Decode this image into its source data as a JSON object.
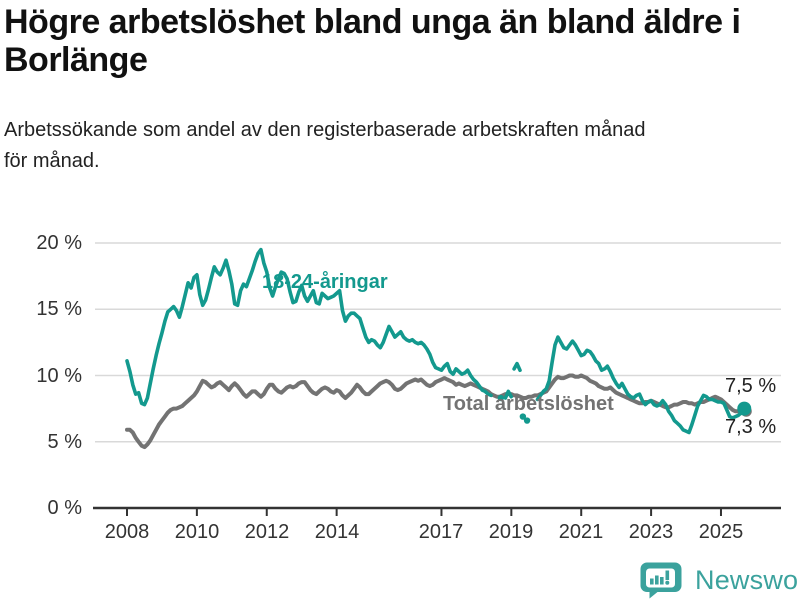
{
  "header": {
    "title": "Högre arbetslöshet bland unga än bland äldre i Borlänge",
    "subtitle": "Arbetssökande som andel av den registerbaserade arbetskraften månad för månad."
  },
  "colors": {
    "young_series": "#13998E",
    "total_series": "#737373",
    "gridline": "#d9d9d9",
    "axis": "#333333",
    "tick_label": "#333333",
    "title_text": "#111111",
    "logo_teal": "#3BA29D"
  },
  "footer": {
    "brand": "Newsworthy",
    "logo_icon": "newsworthy-speech-bubble-bar-chart-icon"
  },
  "chart_data": {
    "type": "line",
    "unit": "%",
    "grid": "horizontal",
    "legend_position": "inline-annotations",
    "ylim": [
      0,
      20
    ],
    "xlim": [
      2008,
      2025.75
    ],
    "yticks": [
      {
        "value": 20,
        "label": "20 %"
      },
      {
        "value": 15,
        "label": "15 %"
      },
      {
        "value": 10,
        "label": "10 %"
      },
      {
        "value": 5,
        "label": "5 %"
      },
      {
        "value": 0,
        "label": "0 %"
      }
    ],
    "xticks": [
      {
        "year": 2008,
        "label": "2008"
      },
      {
        "year": 2010,
        "label": "2010"
      },
      {
        "year": 2012,
        "label": "2012"
      },
      {
        "year": 2014,
        "label": "2014"
      },
      {
        "year": 2017,
        "label": "2017"
      },
      {
        "year": 2019,
        "label": "2019"
      },
      {
        "year": 2021,
        "label": "2021"
      },
      {
        "year": 2023,
        "label": "2023"
      },
      {
        "year": 2025,
        "label": "2025"
      }
    ],
    "series": [
      {
        "name": "Total arbetslöshet",
        "annotation_label": "Total arbetslöshet",
        "end_value_label": "7,3 %",
        "end_value": 7.3,
        "color": "#737373",
        "line_width": 4,
        "end_dot_radius": 5.5,
        "segments": [
          {
            "start": 2008.0,
            "step_months": 1,
            "values": [
              5.9,
              5.9,
              5.7,
              5.3,
              5.0,
              4.7,
              4.6,
              4.8,
              5.1,
              5.5,
              5.9,
              6.3,
              6.6,
              6.9,
              7.2,
              7.4,
              7.5,
              7.5,
              7.6,
              7.7,
              7.9,
              8.1,
              8.3,
              8.5,
              8.8,
              9.2,
              9.6,
              9.5,
              9.3,
              9.1,
              9.2,
              9.4,
              9.5,
              9.3,
              9.1,
              8.9,
              9.2,
              9.4,
              9.2,
              8.9,
              8.6,
              8.4,
              8.6,
              8.8,
              8.8,
              8.6,
              8.4,
              8.6,
              9.0,
              9.3,
              9.3,
              9.0,
              8.8,
              8.7,
              8.9,
              9.1,
              9.2,
              9.1,
              9.2,
              9.4,
              9.5,
              9.5,
              9.2,
              8.9,
              8.7,
              8.6,
              8.8,
              9.0,
              9.1,
              9.0,
              8.8,
              8.7,
              8.9,
              8.8,
              8.5,
              8.3,
              8.5,
              8.7,
              9.0,
              9.3,
              9.1,
              8.8,
              8.6,
              8.6,
              8.8,
              9.0,
              9.2,
              9.4,
              9.5,
              9.6,
              9.5,
              9.3,
              9.0,
              8.9,
              9.0,
              9.2,
              9.4,
              9.5,
              9.6,
              9.7,
              9.6,
              9.7,
              9.5,
              9.3,
              9.2,
              9.3,
              9.5,
              9.6,
              9.7,
              9.8,
              9.7,
              9.6,
              9.5,
              9.3,
              9.4,
              9.3,
              9.2,
              9.3,
              9.4,
              9.3,
              9.2,
              9.1,
              9.0,
              8.9,
              8.8,
              8.6,
              8.5,
              8.4,
              8.4,
              8.5,
              8.6,
              8.6,
              8.6,
              8.5,
              8.5,
              8.4,
              8.3,
              8.3,
              8.4,
              8.4,
              8.5,
              8.5,
              8.6,
              8.7,
              8.8,
              9.1,
              9.4,
              9.7,
              9.9,
              9.8,
              9.8,
              9.9,
              10.0,
              10.0,
              9.9,
              9.9,
              10.0,
              9.9,
              9.8,
              9.6,
              9.5,
              9.4,
              9.2,
              9.1,
              9.0,
              9.0,
              9.1,
              8.9,
              8.7,
              8.6,
              8.5,
              8.4,
              8.3,
              8.2,
              8.1,
              8.0,
              7.9,
              7.9,
              8.0,
              8.0,
              8.1,
              8.0,
              7.9,
              7.8,
              7.7,
              7.6,
              7.6,
              7.7,
              7.8,
              7.8,
              7.9,
              8.0,
              8.0,
              7.9,
              7.9,
              7.8,
              7.9,
              8.0,
              8.0,
              8.1,
              8.2,
              8.3,
              8.4,
              8.3,
              8.2,
              8.0,
              7.8,
              7.6,
              7.4,
              7.3,
              7.3,
              7.2,
              7.3
            ]
          }
        ],
        "isolated_dots": []
      },
      {
        "name": "18-24-åringar",
        "annotation_label": "18-24-åringar",
        "end_value_label": "7,5 %",
        "end_value": 7.5,
        "color": "#13998E",
        "line_width": 3.6,
        "end_dot_radius": 7,
        "segments": [
          {
            "start": 2008.0,
            "step_months": 1,
            "values": [
              11.1,
              10.3,
              9.3,
              8.6,
              8.7,
              7.9,
              7.8,
              8.3,
              9.4,
              10.5,
              11.5,
              12.4,
              13.2,
              14.1,
              14.8,
              15.0,
              15.2,
              14.9,
              14.4,
              15.2,
              16.1,
              17.0,
              16.6,
              17.4,
              17.6,
              16.1,
              15.3,
              15.7,
              16.5,
              17.4,
              18.2,
              17.8,
              17.6,
              18.1,
              18.7,
              17.9,
              16.9,
              15.4,
              15.3,
              16.4,
              16.9,
              16.7,
              17.3,
              17.9,
              18.6,
              19.2,
              19.5,
              18.5,
              17.8,
              16.6,
              16.0,
              16.7,
              17.3,
              17.8,
              17.7,
              17.3,
              16.3,
              15.5,
              15.6,
              16.3,
              16.8,
              16.0,
              15.6,
              16.0,
              16.4,
              15.5,
              15.4,
              16.2,
              16.0,
              15.8,
              15.9,
              16.0,
              16.2,
              16.4,
              14.9,
              14.1,
              14.5,
              14.7,
              14.7,
              14.5,
              14.3,
              13.6,
              12.9,
              12.5,
              12.7,
              12.6,
              12.3,
              12.1,
              12.5,
              13.1,
              13.7,
              13.3,
              12.9,
              13.1,
              13.3,
              12.9,
              12.7,
              12.6,
              12.7,
              12.5,
              12.4,
              12.5,
              12.3,
              12.0,
              11.6,
              11.0,
              10.6,
              10.5,
              10.4,
              10.7,
              10.9,
              10.3,
              10.1,
              10.5,
              10.3,
              10.1,
              10.2,
              10.4,
              10.0,
              9.7,
              9.5,
              9.2,
              8.9,
              8.8,
              8.6,
              8.5
            ]
          },
          {
            "start": 2018.83,
            "step_months": 1,
            "values": [
              8.3,
              8.8,
              8.4
            ]
          },
          {
            "start": 2019.08,
            "step_months": 1,
            "values": [
              10.5,
              10.9,
              10.4
            ]
          },
          {
            "start": 2019.75,
            "step_months": 1,
            "values": [
              8.2,
              8.5,
              8.8,
              9.0,
              9.6,
              11.0,
              12.3,
              12.9,
              12.5,
              12.1,
              12.0,
              12.3,
              12.6,
              12.3,
              11.9,
              11.5,
              11.6,
              11.9,
              11.8,
              11.5,
              11.1,
              10.9,
              10.4,
              10.5,
              10.7,
              10.3,
              9.8,
              9.4,
              9.1,
              9.4,
              9.0,
              8.6,
              8.4,
              8.3,
              8.5,
              8.6,
              8.1,
              7.8,
              8.0,
              8.1,
              7.8,
              7.7,
              7.8,
              8.1,
              7.8,
              7.3,
              7.0,
              6.6,
              6.4,
              6.2,
              5.9,
              5.8,
              5.7,
              6.3,
              7.0,
              7.7,
              8.1,
              8.5,
              8.4,
              8.2,
              8.2,
              8.1,
              8.0,
              8.0,
              7.9,
              7.4,
              6.9,
              6.8,
              6.9,
              7.0,
              7.2,
              7.5
            ]
          }
        ],
        "isolated_dots": [
          [
            2018.7,
            8.3
          ],
          [
            2019.33,
            6.9
          ],
          [
            2019.45,
            6.6
          ]
        ]
      }
    ]
  }
}
